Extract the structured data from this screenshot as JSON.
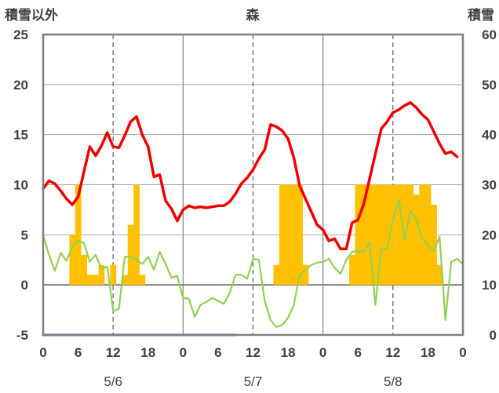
{
  "chart_data": {
    "type": "bar+line",
    "title": "森",
    "left_axis_label": "積雪以外",
    "right_axis_label": "積雪",
    "left_ylim": [
      -5,
      25
    ],
    "left_yticks": [
      "-5",
      "0",
      "5",
      "10",
      "15",
      "20",
      "25"
    ],
    "right_ylim": [
      0,
      60
    ],
    "right_yticks": [
      "0",
      "10",
      "20",
      "30",
      "40",
      "50",
      "60"
    ],
    "x_tick_labels": [
      "0",
      "6",
      "12",
      "18",
      "0",
      "6",
      "12",
      "18",
      "0",
      "6",
      "12",
      "18",
      "0"
    ],
    "date_labels": [
      {
        "label": "5/6",
        "hour": 12
      },
      {
        "label": "5/7",
        "hour": 36
      },
      {
        "label": "5/8",
        "hour": 60
      }
    ],
    "grid": "vertical dashed at 12h, solid at day boundaries; horizontal at y=0 and every 5",
    "colors": {
      "temperature": "#ee0000",
      "wind": "#92d050",
      "snow": "#ffc000",
      "baseline": "#7030a0",
      "frame": "#808080"
    },
    "series": [
      {
        "name": "",
        "kind": "line",
        "axis": "left",
        "color": "#ee0000",
        "x": [
          0,
          1,
          2,
          3,
          4,
          5,
          6,
          7,
          8,
          9,
          10,
          11,
          12,
          13,
          14,
          15,
          16,
          17,
          18,
          19,
          20,
          21,
          22,
          23,
          24,
          25,
          26,
          27,
          28,
          29,
          30,
          31,
          32,
          33,
          34,
          35,
          36,
          37,
          38,
          39,
          40,
          41,
          42,
          43,
          44,
          45,
          46,
          47,
          48,
          49,
          50,
          51,
          52,
          53,
          54,
          55,
          56,
          57,
          58,
          59,
          60,
          61,
          62,
          63,
          64,
          65,
          66,
          67,
          68,
          69,
          70,
          71
        ],
        "y": [
          9.6,
          10.4,
          10.1,
          9.4,
          8.6,
          8.0,
          8.8,
          11.3,
          13.8,
          12.9,
          13.9,
          15.2,
          13.8,
          13.7,
          14.9,
          16.3,
          16.8,
          15.0,
          13.8,
          10.8,
          11.0,
          8.4,
          7.6,
          6.4,
          7.5,
          7.9,
          7.7,
          7.8,
          7.7,
          7.8,
          7.9,
          7.9,
          8.3,
          9.1,
          10.1,
          10.7,
          11.5,
          12.6,
          13.5,
          16.0,
          15.8,
          15.4,
          14.6,
          12.7,
          9.9,
          8.6,
          7.3,
          6.0,
          5.5,
          4.4,
          4.6,
          3.6,
          3.6,
          6.2,
          6.5,
          8.1,
          10.6,
          13.1,
          15.6,
          16.3,
          17.2,
          17.5,
          17.9,
          18.2,
          17.7,
          17.0,
          16.5,
          15.3,
          14.1,
          13.1,
          13.3,
          12.8
        ]
      },
      {
        "name": "",
        "kind": "line",
        "axis": "left",
        "color": "#92d050",
        "x": [
          0,
          1,
          2,
          3,
          4,
          5,
          6,
          7,
          8,
          9,
          10,
          11,
          12,
          13,
          14,
          15,
          16,
          17,
          18,
          19,
          20,
          21,
          22,
          23,
          24,
          25,
          26,
          27,
          28,
          29,
          30,
          31,
          32,
          33,
          34,
          35,
          36,
          37,
          38,
          39,
          40,
          41,
          42,
          43,
          44,
          45,
          46,
          47,
          48,
          49,
          50,
          51,
          52,
          53,
          54,
          55,
          56,
          57,
          58,
          59,
          60,
          61,
          62,
          63,
          64,
          65,
          66,
          67,
          68,
          69,
          70,
          71,
          72
        ],
        "y": [
          5.0,
          3.0,
          1.4,
          3.2,
          2.4,
          3.8,
          4.4,
          4.2,
          2.3,
          3.0,
          1.6,
          1.8,
          -2.6,
          -2.4,
          2.8,
          2.8,
          2.5,
          2.1,
          2.8,
          1.5,
          3.3,
          2.1,
          0.7,
          0.9,
          -1.3,
          -1.4,
          -3.2,
          -2.0,
          -1.7,
          -1.3,
          -1.6,
          -1.9,
          -0.8,
          1.0,
          1.0,
          0.6,
          2.6,
          2.5,
          -1.6,
          -3.5,
          -4.2,
          -4.0,
          -3.3,
          -2.0,
          1.0,
          1.5,
          2.0,
          2.2,
          2.3,
          2.6,
          1.7,
          1.1,
          2.5,
          3.3,
          3.4,
          3.3,
          4.2,
          -2.0,
          3.6,
          3.6,
          6.5,
          8.5,
          4.5,
          7.4,
          6.5,
          4.6,
          4.0,
          3.4,
          4.8,
          -3.5,
          2.3,
          2.6,
          2.1
        ]
      },
      {
        "name": "",
        "kind": "bar",
        "axis": "right",
        "color": "#ffc000",
        "bars": [
          {
            "x": 5.0,
            "y": 20
          },
          {
            "x": 6.0,
            "y": 30
          },
          {
            "x": 7.0,
            "y": 16
          },
          {
            "x": 8.0,
            "y": 12
          },
          {
            "x": 9.0,
            "y": 12
          },
          {
            "x": 10.0,
            "y": 14
          },
          {
            "x": 11.0,
            "y": 10
          },
          {
            "x": 12.0,
            "y": 14
          },
          {
            "x": 14.0,
            "y": 12
          },
          {
            "x": 15.0,
            "y": 22
          },
          {
            "x": 16.0,
            "y": 30
          },
          {
            "x": 17.0,
            "y": 12
          },
          {
            "x": 40.0,
            "y": 14
          },
          {
            "x": 41.0,
            "y": 30
          },
          {
            "x": 42.0,
            "y": 30
          },
          {
            "x": 43.0,
            "y": 30
          },
          {
            "x": 44.0,
            "y": 30
          },
          {
            "x": 45.0,
            "y": 14
          },
          {
            "x": 53.0,
            "y": 16
          },
          {
            "x": 54.0,
            "y": 30
          },
          {
            "x": 55.0,
            "y": 30
          },
          {
            "x": 56.0,
            "y": 30
          },
          {
            "x": 57.0,
            "y": 30
          },
          {
            "x": 58.0,
            "y": 30
          },
          {
            "x": 59.0,
            "y": 30
          },
          {
            "x": 60.0,
            "y": 30
          },
          {
            "x": 61.0,
            "y": 30
          },
          {
            "x": 62.0,
            "y": 30
          },
          {
            "x": 63.0,
            "y": 30
          },
          {
            "x": 64.0,
            "y": 28
          },
          {
            "x": 65.0,
            "y": 30
          },
          {
            "x": 66.0,
            "y": 30
          },
          {
            "x": 67.0,
            "y": 26
          },
          {
            "x": 68.0,
            "y": 14
          }
        ]
      },
      {
        "name": "",
        "kind": "line",
        "axis": "left",
        "color": "#7030a0",
        "x": [
          0,
          33
        ],
        "y": [
          -5,
          -5
        ]
      }
    ]
  }
}
